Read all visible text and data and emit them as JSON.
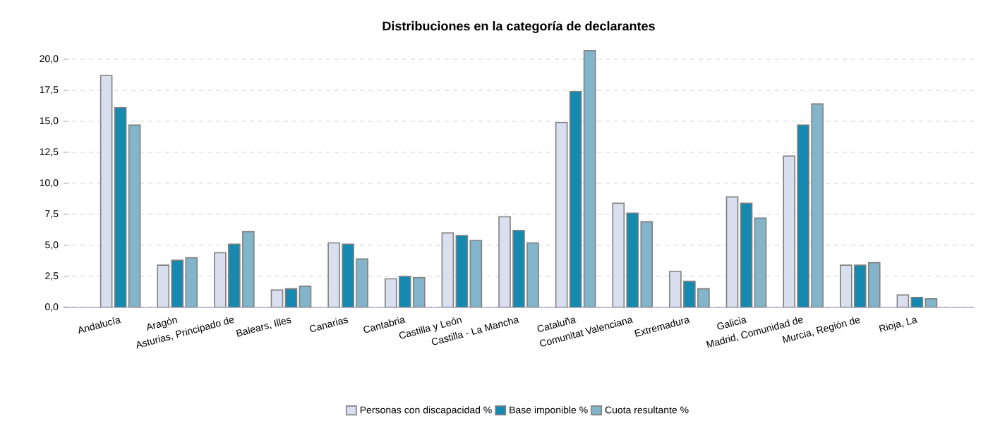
{
  "chart_data": {
    "type": "bar",
    "title": "Distribuciones en la categoría de declarantes",
    "categories": [
      "Andalucía",
      "Aragón",
      "Asturias, Principado de",
      "Balears, Illes",
      "Canarias",
      "Cantabria",
      "Castilla y León",
      "Castilla - La Mancha",
      "Cataluña",
      "Comunitat Valenciana",
      "Extremadura",
      "Galicia",
      "Madrid, Comunidad de",
      "Murcia, Región de",
      "Rioja, La"
    ],
    "series": [
      {
        "name": "Personas con discapacidad %",
        "color": "#dadff0",
        "values": [
          18.7,
          3.4,
          4.4,
          1.4,
          5.2,
          2.3,
          6.0,
          7.3,
          14.9,
          8.4,
          2.9,
          8.9,
          12.2,
          3.4,
          1.0
        ]
      },
      {
        "name": "Base imponible %",
        "color": "#1589b0",
        "values": [
          16.1,
          3.8,
          5.1,
          1.5,
          5.1,
          2.5,
          5.8,
          6.2,
          17.4,
          7.6,
          2.1,
          8.4,
          14.7,
          3.4,
          0.8
        ]
      },
      {
        "name": "Cuota resultante %",
        "color": "#82b5c9",
        "values": [
          14.7,
          4.0,
          6.1,
          1.7,
          3.9,
          2.4,
          5.4,
          5.2,
          20.7,
          6.9,
          1.5,
          7.2,
          16.4,
          3.6,
          0.7
        ]
      }
    ],
    "ylim": [
      0,
      20.8
    ],
    "yticks": [
      {
        "value": 0,
        "label": "0,0"
      },
      {
        "value": 2.5,
        "label": "2,5"
      },
      {
        "value": 5,
        "label": "5,0"
      },
      {
        "value": 7.5,
        "label": "7,5"
      },
      {
        "value": 10,
        "label": "10,0"
      },
      {
        "value": 12.5,
        "label": "12,5"
      },
      {
        "value": 15,
        "label": "15,0"
      },
      {
        "value": 17.5,
        "label": "17,5"
      },
      {
        "value": 20,
        "label": "20,0"
      }
    ],
    "grid": "y",
    "legend": "bottom"
  }
}
